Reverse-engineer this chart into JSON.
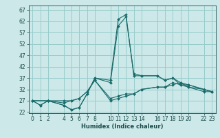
{
  "xlabel": "Humidex (Indice chaleur)",
  "bg_color": "#cce8e8",
  "grid_color": "#99cccc",
  "line_color": "#1a6b6b",
  "xlim": [
    -0.5,
    23.5
  ],
  "ylim": [
    21.5,
    69
  ],
  "xticks": [
    0,
    1,
    2,
    4,
    5,
    6,
    7,
    8,
    10,
    11,
    12,
    13,
    14,
    16,
    17,
    18,
    19,
    20,
    22,
    23
  ],
  "yticks": [
    22,
    27,
    32,
    37,
    42,
    47,
    52,
    57,
    62,
    67
  ],
  "lines": [
    {
      "x": [
        0,
        1,
        2,
        4,
        5,
        6,
        7,
        8,
        10,
        11,
        12,
        13,
        14,
        16,
        17,
        18,
        19,
        20,
        22,
        23
      ],
      "y": [
        27,
        25,
        27,
        25,
        23,
        24,
        30,
        37,
        36,
        63,
        65,
        38,
        38,
        38,
        36,
        37,
        34,
        33,
        31,
        31
      ]
    },
    {
      "x": [
        0,
        1,
        2,
        4,
        5,
        6,
        7,
        8,
        10,
        11,
        12,
        13,
        14,
        16,
        17,
        18,
        19,
        20,
        22,
        23
      ],
      "y": [
        27,
        25,
        27,
        25,
        23,
        24,
        30,
        37,
        35,
        60,
        64,
        39,
        38,
        38,
        36,
        37,
        35,
        34,
        32,
        31
      ]
    },
    {
      "x": [
        0,
        2,
        4,
        5,
        6,
        7,
        8,
        10,
        11,
        12,
        13,
        14,
        16,
        17,
        18,
        19,
        20,
        22,
        23
      ],
      "y": [
        27,
        27,
        26,
        27,
        28,
        31,
        36,
        28,
        29,
        30,
        30,
        32,
        33,
        33,
        35,
        34,
        34,
        32,
        31
      ]
    },
    {
      "x": [
        0,
        2,
        4,
        5,
        6,
        7,
        8,
        10,
        11,
        12,
        13,
        14,
        16,
        17,
        18,
        19,
        20,
        22,
        23
      ],
      "y": [
        27,
        27,
        27,
        27,
        28,
        31,
        36,
        27,
        28,
        29,
        30,
        32,
        33,
        33,
        34,
        35,
        33,
        32,
        31
      ]
    }
  ]
}
